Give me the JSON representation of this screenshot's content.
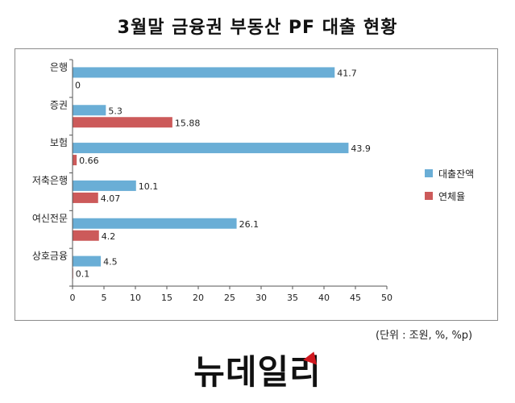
{
  "header": {
    "title": "3월말 금융권 부동산 PF 대출 현황"
  },
  "footer": {
    "unit_note": "(단위 : 조원, %, %p)",
    "logo_text": "뉴데일리"
  },
  "colors": {
    "loan": "#6aaed6",
    "delinquency": "#cc5a5a"
  },
  "chart_data": {
    "type": "bar",
    "orientation": "horizontal",
    "categories": [
      "은행",
      "증권",
      "보험",
      "저축은행",
      "여신전문",
      "상호금융"
    ],
    "series": [
      {
        "name": "대출잔액",
        "values": [
          41.7,
          5.3,
          43.9,
          10.1,
          26.1,
          4.5
        ]
      },
      {
        "name": "연체율",
        "values": [
          0,
          15.88,
          0.66,
          4.07,
          4.2,
          0.1
        ]
      }
    ],
    "value_labels": [
      [
        "41.7",
        "5.3",
        "43.9",
        "10.1",
        "26.1",
        "4.5"
      ],
      [
        "0",
        "15.88",
        "0.66",
        "4.07",
        "4.2",
        "0.1"
      ]
    ],
    "xlim": [
      0,
      50
    ],
    "xticks": [
      "0",
      "5",
      "10",
      "15",
      "20",
      "25",
      "30",
      "35",
      "40",
      "45",
      "50"
    ],
    "grid": false,
    "legend_position": "right"
  }
}
